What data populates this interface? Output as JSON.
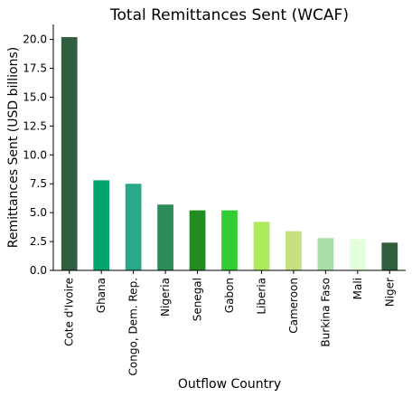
{
  "chart_data": {
    "type": "bar",
    "title": "Total Remittances Sent (WCAF)",
    "xlabel": "Outflow Country",
    "ylabel": "Remittances Sent (USD billions)",
    "categories": [
      "Cote d'Ivoire",
      "Ghana",
      "Congo, Dem. Rep.",
      "Nigeria",
      "Senegal",
      "Gabon",
      "Liberia",
      "Cameroon",
      "Burkina Faso",
      "Mali",
      "Niger"
    ],
    "values": [
      20.2,
      7.8,
      7.5,
      5.7,
      5.2,
      5.2,
      4.2,
      3.4,
      2.8,
      2.7,
      2.4
    ],
    "colors": [
      "#2e5e3e",
      "#00a36c",
      "#2aa98a",
      "#2e8b57",
      "#228b22",
      "#32cd32",
      "#adeb5c",
      "#c6e07f",
      "#a8dfa8",
      "#e4ffdc",
      "#2e5e3e"
    ],
    "ylim": [
      0,
      21.3
    ],
    "yticks": [
      0.0,
      2.5,
      5.0,
      7.5,
      10.0,
      12.5,
      15.0,
      17.5,
      20.0
    ],
    "ytick_labels": [
      "0.0",
      "2.5",
      "5.0",
      "7.5",
      "10.0",
      "12.5",
      "15.0",
      "17.5",
      "20.0"
    ],
    "grid": false,
    "legend": false
  }
}
